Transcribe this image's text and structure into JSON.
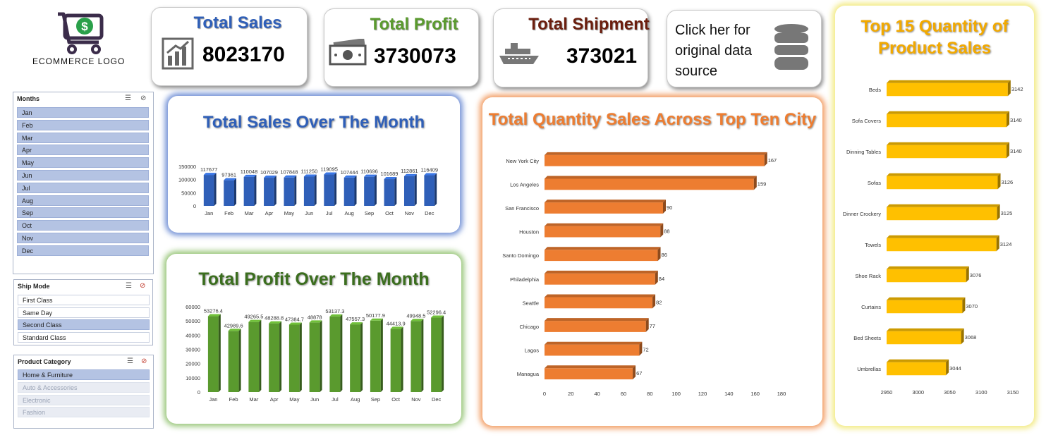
{
  "logo": {
    "text": "ECOMMERCE LOGO"
  },
  "kpis": {
    "sales": {
      "title": "Total Sales",
      "value": "8023170",
      "icon": "growth-chart-icon"
    },
    "profit": {
      "title": "Total Profit",
      "value": "3730073",
      "icon": "cash-icon"
    },
    "shipment": {
      "title": "Total Shipment",
      "value": "373021",
      "icon": "ship-icon"
    },
    "source": {
      "text": "Click her for original data source",
      "icon": "database-icon"
    }
  },
  "slicers": {
    "months": {
      "title": "Months",
      "items": [
        "Jan",
        "Feb",
        "Mar",
        "Apr",
        "May",
        "Jun",
        "Jul",
        "Aug",
        "Sep",
        "Oct",
        "Nov",
        "Dec"
      ]
    },
    "ship_mode": {
      "title": "Ship Mode",
      "items": [
        "First Class",
        "Same Day",
        "Second Class",
        "Standard Class"
      ],
      "selected": [
        "Second Class"
      ]
    },
    "category": {
      "title": "Product Category",
      "items": [
        "Home & Furniture",
        "Auto & Accessories",
        "Electronic",
        "Fashion"
      ],
      "selected": [
        "Home & Furniture"
      ]
    }
  },
  "colors": {
    "sales": "#2f5fb8",
    "profit": "#5a9a2e",
    "city": "#ed7d31",
    "product": "#ffc000"
  },
  "chart_data": [
    {
      "id": "sales",
      "type": "bar",
      "title": "Total Sales Over The Month",
      "categories": [
        "Jan",
        "Feb",
        "Mar",
        "Apr",
        "May",
        "Jun",
        "Jul",
        "Aug",
        "Sep",
        "Oct",
        "Nov",
        "Dec"
      ],
      "values": [
        117677,
        97361,
        110048,
        107029,
        107848,
        111250,
        119095,
        107444,
        110696,
        101689,
        112861,
        116409
      ],
      "labels": [
        "117677",
        "97361",
        "110048",
        "107029",
        "107848",
        "111250",
        "119095",
        "107444",
        "110696",
        "101689",
        "112861",
        "116409"
      ],
      "ylim": [
        0,
        150000
      ],
      "yticks": [
        "0",
        "50000",
        "100000",
        "150000"
      ]
    },
    {
      "id": "profit",
      "type": "bar",
      "title": "Total Profit Over The Month",
      "categories": [
        "Jan",
        "Feb",
        "Mar",
        "Apr",
        "May",
        "Jun",
        "Jul",
        "Aug",
        "Sep",
        "Oct",
        "Nov",
        "Dec"
      ],
      "values": [
        53276.4,
        42989.6,
        49265.5,
        48288.8,
        47384.7,
        48878,
        53137.3,
        47557.3,
        50177.9,
        44413.9,
        49948.5,
        52296.4
      ],
      "labels": [
        "53276.4",
        "42989.6",
        "49265.5",
        "48288.8",
        "47384.7",
        "48878",
        "53137.3",
        "47557.3",
        "50177.9",
        "44413.9",
        "49948.5",
        "52296.4"
      ],
      "ylim": [
        0,
        60000
      ],
      "yticks": [
        "0",
        "10000",
        "20000",
        "30000",
        "40000",
        "50000",
        "60000"
      ]
    },
    {
      "id": "city",
      "type": "bar",
      "orientation": "horizontal",
      "title": "Total Quantity Sales Across Top Ten City",
      "categories": [
        "New York City",
        "Los Angeles",
        "San Francisco",
        "Houston",
        "Santo Domingo",
        "Philadelphia",
        "Seattle",
        "Chicago",
        "Lagos",
        "Managua"
      ],
      "values": [
        167,
        159,
        90,
        88,
        86,
        84,
        82,
        77,
        72,
        67
      ],
      "labels": [
        "167",
        "159",
        "90",
        "88",
        "86",
        "84",
        "82",
        "77",
        "72",
        "67"
      ],
      "xlim": [
        0,
        180
      ],
      "xticks": [
        "0",
        "20",
        "40",
        "60",
        "80",
        "100",
        "120",
        "140",
        "160",
        "180"
      ]
    },
    {
      "id": "product",
      "type": "bar",
      "orientation": "horizontal",
      "title": "Top 15 Quantity of Product Sales",
      "categories": [
        "Beds",
        "Sofa Covers",
        "Dinning Tables",
        "Sofas",
        "Dinner Crockery",
        "Towels",
        "Shoe Rack",
        "Curtains",
        "Bed Sheets",
        "Umbrellas"
      ],
      "values": [
        3142,
        3140,
        3140,
        3126,
        3125,
        3124,
        3076,
        3070,
        3068,
        3044
      ],
      "labels": [
        "3142",
        "3140",
        "3140",
        "3126",
        "3125",
        "3124",
        "3076",
        "3070",
        "3068",
        "3044"
      ],
      "xlim": [
        2950,
        3150
      ],
      "xticks": [
        "2950",
        "3000",
        "3050",
        "3100",
        "3150"
      ]
    }
  ]
}
